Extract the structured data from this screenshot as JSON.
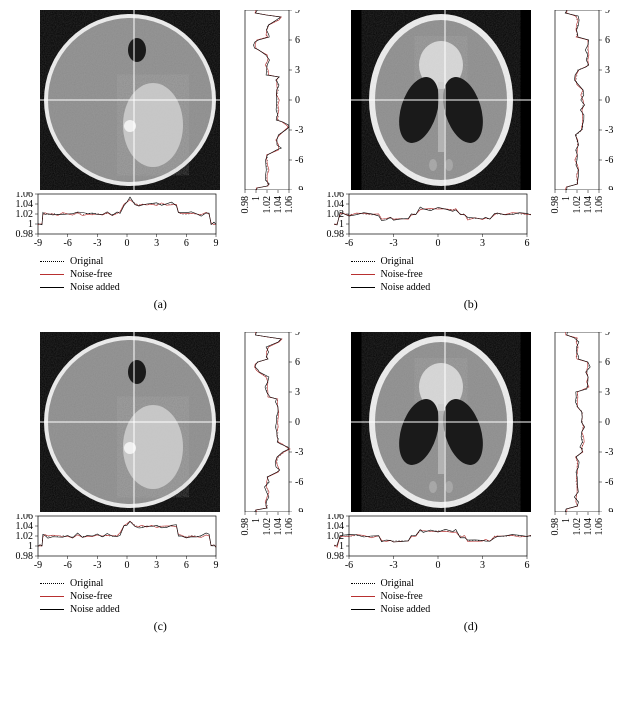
{
  "figure": {
    "panels": [
      "a",
      "b",
      "c",
      "d"
    ],
    "phantom_by_panel": {
      "a": "circle",
      "b": "shepp",
      "c": "circle",
      "d": "shepp"
    },
    "hplot_y_ticks": [
      0.98,
      1,
      1.02,
      1.04,
      1.06
    ],
    "vplot_x_ticks": [
      0.98,
      1,
      1.02,
      1.04,
      1.06
    ],
    "axis_ticks_circle": [
      -9,
      -6,
      -3,
      0,
      3,
      6,
      9
    ],
    "axis_ticks_shepp": [
      -6,
      -3,
      0,
      3,
      6
    ],
    "vplot_y_ticks": [
      -9,
      -6,
      -3,
      0,
      3,
      6,
      9
    ],
    "legend": [
      {
        "label": "Original",
        "color": "#000000",
        "dash": "1,2"
      },
      {
        "label": "Noise-free",
        "color": "#b83030",
        "dash": ""
      },
      {
        "label": "Noise added",
        "color": "#000000",
        "dash": ""
      }
    ],
    "colors": {
      "bg": "#ffffff",
      "phantom_bg": "#000000",
      "noise_gray": "#8a8a8a",
      "noise_gray_dark": "#7a7a7a",
      "dark_ellipse": "#1a1a1a",
      "bright_ellipse": "#c8c8c8",
      "bright_ellipse2": "#d8d8d8",
      "ring": "#f0f0f0",
      "crosshair": "#ffffff",
      "axis": "#000000",
      "line_noisefree": "#b83030",
      "line_noiseadded": "#000000"
    },
    "hprofile_circle": [
      [
        -9,
        1.0
      ],
      [
        -8.8,
        1.0
      ],
      [
        -8.6,
        1.0
      ],
      [
        -8.5,
        1.02
      ],
      [
        -8.3,
        1.023
      ],
      [
        -8,
        1.018
      ],
      [
        -7.5,
        1.022
      ],
      [
        -7,
        1.019
      ],
      [
        -6.5,
        1.021
      ],
      [
        -6,
        1.02
      ],
      [
        -5.5,
        1.018
      ],
      [
        -5,
        1.022
      ],
      [
        -4.5,
        1.019
      ],
      [
        -4,
        1.021
      ],
      [
        -3.5,
        1.02
      ],
      [
        -3,
        1.022
      ],
      [
        -2.5,
        1.018
      ],
      [
        -2,
        1.021
      ],
      [
        -1.5,
        1.019
      ],
      [
        -1,
        1.022
      ],
      [
        -0.7,
        1.025
      ],
      [
        -0.3,
        1.04
      ],
      [
        0,
        1.045
      ],
      [
        0.3,
        1.05
      ],
      [
        0.8,
        1.042
      ],
      [
        1.2,
        1.038
      ],
      [
        1.5,
        1.04
      ],
      [
        2,
        1.038
      ],
      [
        2.5,
        1.041
      ],
      [
        3,
        1.039
      ],
      [
        3.5,
        1.04
      ],
      [
        4,
        1.038
      ],
      [
        4.5,
        1.04
      ],
      [
        5,
        1.039
      ],
      [
        5.2,
        1.022
      ],
      [
        5.5,
        1.02
      ],
      [
        6,
        1.019
      ],
      [
        6.5,
        1.021
      ],
      [
        7,
        1.02
      ],
      [
        7.5,
        1.018
      ],
      [
        8,
        1.022
      ],
      [
        8.3,
        1.02
      ],
      [
        8.5,
        1.0
      ],
      [
        8.8,
        1.0
      ],
      [
        9,
        1.0
      ]
    ],
    "hprofile_shepp": [
      [
        -7,
        1.0
      ],
      [
        -6.8,
        1.0
      ],
      [
        -6.6,
        1.02
      ],
      [
        -6.4,
        1.02
      ],
      [
        -6,
        1.019
      ],
      [
        -5.5,
        1.021
      ],
      [
        -5,
        1.02
      ],
      [
        -4.5,
        1.018
      ],
      [
        -4,
        1.02
      ],
      [
        -3.8,
        1.01
      ],
      [
        -3.5,
        1.01
      ],
      [
        -3.2,
        1.011
      ],
      [
        -3,
        1.01
      ],
      [
        -2.5,
        1.011
      ],
      [
        -2,
        1.01
      ],
      [
        -1.8,
        1.02
      ],
      [
        -1.5,
        1.02
      ],
      [
        -1.2,
        1.03
      ],
      [
        -1,
        1.03
      ],
      [
        -0.5,
        1.029
      ],
      [
        0,
        1.031
      ],
      [
        0.5,
        1.03
      ],
      [
        1,
        1.029
      ],
      [
        1.2,
        1.03
      ],
      [
        1.5,
        1.02
      ],
      [
        1.8,
        1.02
      ],
      [
        2,
        1.01
      ],
      [
        2.5,
        1.011
      ],
      [
        3,
        1.01
      ],
      [
        3.2,
        1.011
      ],
      [
        3.5,
        1.01
      ],
      [
        3.8,
        1.02
      ],
      [
        4,
        1.02
      ],
      [
        4.5,
        1.019
      ],
      [
        5,
        1.021
      ],
      [
        5.5,
        1.02
      ],
      [
        6,
        1.019
      ],
      [
        6.4,
        1.02
      ],
      [
        6.6,
        1.0
      ],
      [
        6.8,
        1.0
      ],
      [
        7,
        1.0
      ]
    ],
    "vprofile_circle": [
      [
        -9,
        1.0
      ],
      [
        -8.8,
        1.0
      ],
      [
        -8.6,
        1.02
      ],
      [
        -8.4,
        1.021
      ],
      [
        -8,
        1.019
      ],
      [
        -7.5,
        1.02
      ],
      [
        -7,
        1.022
      ],
      [
        -6.5,
        1.019
      ],
      [
        -6,
        1.021
      ],
      [
        -5.5,
        1.02
      ],
      [
        -5,
        1.039
      ],
      [
        -4.8,
        1.042
      ],
      [
        -4.5,
        1.04
      ],
      [
        -4,
        1.038
      ],
      [
        -3.5,
        1.041
      ],
      [
        -3,
        1.052
      ],
      [
        -2.7,
        1.06
      ],
      [
        -2.5,
        1.055
      ],
      [
        -2.2,
        1.048
      ],
      [
        -2,
        1.04
      ],
      [
        -1.7,
        1.041
      ],
      [
        -1.5,
        1.039
      ],
      [
        -1,
        1.04
      ],
      [
        -0.5,
        1.038
      ],
      [
        0,
        1.04
      ],
      [
        0.5,
        1.039
      ],
      [
        1,
        1.041
      ],
      [
        1.5,
        1.04
      ],
      [
        2,
        1.038
      ],
      [
        2.3,
        1.04
      ],
      [
        2.5,
        1.022
      ],
      [
        3,
        1.02
      ],
      [
        3.5,
        1.019
      ],
      [
        4,
        1.021
      ],
      [
        4.5,
        1.02
      ],
      [
        5,
        1.005
      ],
      [
        5.2,
        1.0
      ],
      [
        5.5,
        0.998
      ],
      [
        5.8,
        1.0
      ],
      [
        6,
        1.002
      ],
      [
        6.3,
        1.02
      ],
      [
        6.5,
        1.02
      ],
      [
        7,
        1.019
      ],
      [
        7.5,
        1.021
      ],
      [
        8,
        1.04
      ],
      [
        8.3,
        1.045
      ],
      [
        8.5,
        1.02
      ],
      [
        8.7,
        1.0
      ],
      [
        9,
        1.0
      ]
    ],
    "vprofile_shepp": [
      [
        -9,
        1.0
      ],
      [
        -8.7,
        1.0
      ],
      [
        -8.4,
        1.02
      ],
      [
        -8,
        1.02
      ],
      [
        -7.5,
        1.019
      ],
      [
        -7,
        1.021
      ],
      [
        -6.5,
        1.02
      ],
      [
        -6,
        1.018
      ],
      [
        -5.5,
        1.02
      ],
      [
        -5,
        1.019
      ],
      [
        -4.5,
        1.021
      ],
      [
        -4,
        1.02
      ],
      [
        -3.5,
        1.019
      ],
      [
        -3,
        1.03
      ],
      [
        -2.7,
        1.03
      ],
      [
        -2.5,
        1.029
      ],
      [
        -2,
        1.031
      ],
      [
        -1.5,
        1.03
      ],
      [
        -1,
        1.029
      ],
      [
        -0.5,
        1.031
      ],
      [
        0,
        1.03
      ],
      [
        0.5,
        1.029
      ],
      [
        1,
        1.031
      ],
      [
        1.5,
        1.02
      ],
      [
        2,
        1.019
      ],
      [
        2.5,
        1.02
      ],
      [
        3,
        1.021
      ],
      [
        3.3,
        1.035
      ],
      [
        3.5,
        1.04
      ],
      [
        4,
        1.038
      ],
      [
        4.5,
        1.04
      ],
      [
        5,
        1.039
      ],
      [
        5.5,
        1.041
      ],
      [
        6,
        1.04
      ],
      [
        6.3,
        1.02
      ],
      [
        6.5,
        1.02
      ],
      [
        7,
        1.019
      ],
      [
        7.5,
        1.021
      ],
      [
        8,
        1.02
      ],
      [
        8.4,
        1.019
      ],
      [
        8.7,
        1.0
      ],
      [
        9,
        1.0
      ]
    ],
    "noise_amp": 0.004
  },
  "labels": {
    "a": "(a)",
    "b": "(b)",
    "c": "(c)",
    "d": "(d)"
  }
}
